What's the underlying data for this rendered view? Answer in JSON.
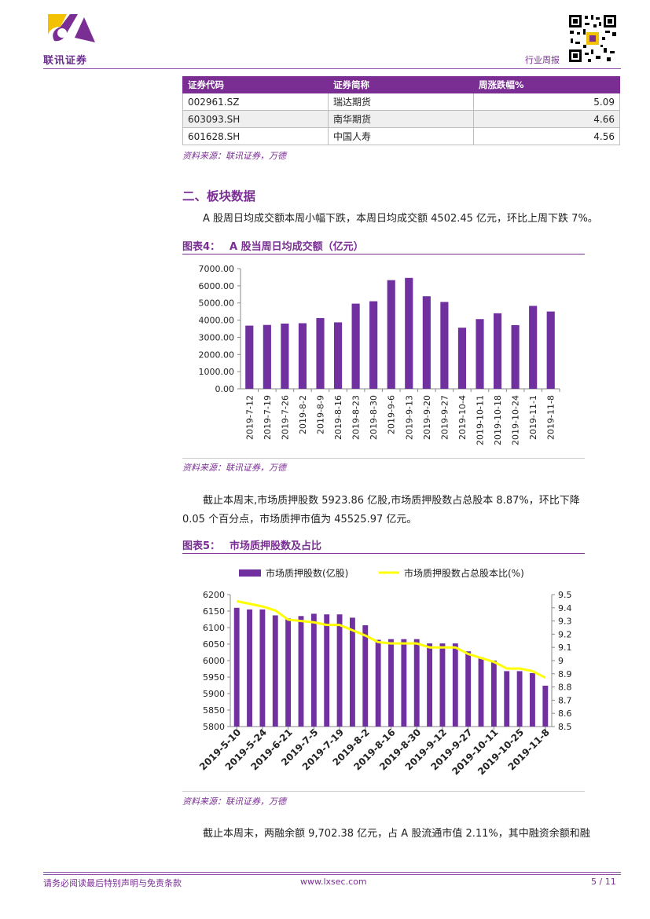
{
  "header": {
    "logo_text": "联讯证券",
    "report_type": "行业周报"
  },
  "table": {
    "headers": [
      "证券代码",
      "证券简称",
      "周涨跌幅%"
    ],
    "rows": [
      [
        "002961.SZ",
        "瑞达期货",
        "5.09"
      ],
      [
        "603093.SH",
        "南华期货",
        "4.66"
      ],
      [
        "601628.SH",
        "中国人寿",
        "4.56"
      ]
    ]
  },
  "source_text": "资料来源：联讯证券，万德",
  "section_title": "二、板块数据",
  "para1": "A 股周日均成交额本周小幅下跌，本周日均成交额 4502.45 亿元，环比上周下跌 7%。",
  "figure4": {
    "label": "图表4：",
    "title": "A 股当周日均成交额（亿元）"
  },
  "para2_line1": "截止本周末,市场质押股数 5923.86 亿股,市场质押股数占总股本 8.87%，环比下降",
  "para2_line2": "0.05 个百分点，市场质押市值为 45525.97 亿元。",
  "figure5": {
    "label": "图表5：",
    "title": "市场质押股数及占比"
  },
  "para3": "截止本周末，两融余额 9,702.38 亿元，占 A 股流通市值 2.11%，其中融资余额和融",
  "footer": {
    "disclaimer": "请务必阅读最后特别声明与免责条款",
    "website": "www.lxsec.com",
    "page": "5 / 11"
  },
  "colors": {
    "accent": "#7a2e93",
    "bar": "#7030a0",
    "line": "#ffff00",
    "logo_yellow": "#f2c200"
  },
  "chart_data": [
    {
      "type": "bar",
      "categories": [
        "2019-7-12",
        "2019-7-19",
        "2019-7-26",
        "2019-8-2",
        "2019-8-9",
        "2019-8-16",
        "2019-8-23",
        "2019-8-30",
        "2019-9-6",
        "2019-9-13",
        "2019-9-20",
        "2019-9-27",
        "2019-10-4",
        "2019-10-11",
        "2019-10-18",
        "2019-10-24",
        "2019-11-1",
        "2019-11-8"
      ],
      "values": [
        3680,
        3720,
        3800,
        3820,
        4120,
        3870,
        4960,
        5100,
        6330,
        6460,
        5390,
        5060,
        3560,
        4060,
        4400,
        3710,
        4830,
        4502.45
      ],
      "ylim": [
        0,
        7000
      ],
      "yticks": [
        "7000.00",
        "6000.00",
        "5000.00",
        "4000.00",
        "3000.00",
        "2000.00",
        "1000.00",
        "0.00"
      ],
      "grid": false
    },
    {
      "type": "bar+line",
      "legend": [
        "市场质押股数(亿股)",
        "市场质押股数占总股本比(%)"
      ],
      "legend_position": "top",
      "x_tick_labels": [
        "2019-5-10",
        "2019-5-24",
        "2019-6-21",
        "2019-7-5",
        "2019-7-19",
        "2019-8-2",
        "2019-8-16",
        "2019-8-30",
        "2019-9-12",
        "2019-9-27",
        "2019-10-11",
        "2019-10-25",
        "2019-11-8"
      ],
      "bars": [
        6160,
        6155,
        6155,
        6137,
        6128,
        6135,
        6142,
        6140,
        6140,
        6130,
        6107,
        6063,
        6065,
        6065,
        6065,
        6052,
        6052,
        6052,
        6028,
        6010,
        6000,
        5968,
        5968,
        5962,
        5923.86
      ],
      "line": [
        9.45,
        9.43,
        9.41,
        9.38,
        9.31,
        9.3,
        9.29,
        9.27,
        9.27,
        9.23,
        9.19,
        9.14,
        9.13,
        9.13,
        9.13,
        9.1,
        9.1,
        9.1,
        9.05,
        9.02,
        8.99,
        8.94,
        8.94,
        8.92,
        8.87
      ],
      "y_left": {
        "min": 5800,
        "max": 6200,
        "ticks": [
          "6200",
          "6150",
          "6100",
          "6050",
          "6000",
          "5950",
          "5900",
          "5850",
          "5800"
        ]
      },
      "y_right": {
        "min": 8.5,
        "max": 9.5,
        "ticks": [
          "9.5",
          "9.4",
          "9.3",
          "9.2",
          "9.1",
          "9",
          "8.9",
          "8.8",
          "8.7",
          "8.6",
          "8.5"
        ]
      }
    }
  ]
}
